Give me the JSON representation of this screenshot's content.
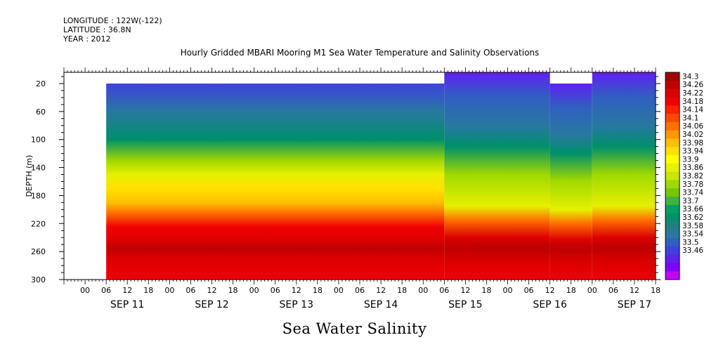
{
  "header": {
    "longitude": "LONGITUDE : 122W(-122)",
    "latitude": "LATITUDE : 36.8N",
    "year": "YEAR : 2012",
    "title": "Hourly Gridded MBARI Mooring M1 Sea Water Temperature and Salinity Observations"
  },
  "caption": "Sea Water Salinity",
  "chart_data": {
    "type": "heatmap",
    "title": "Hourly Gridded MBARI Mooring M1 Sea Water Temperature and Salinity Observations",
    "variable": "Sea Water Salinity",
    "ylabel": "DEPTH (m)",
    "y_ticks": [
      20,
      60,
      100,
      140,
      180,
      220,
      260,
      300
    ],
    "ylim": [
      4,
      300
    ],
    "y_inverted": true,
    "x_hour_ticks": [
      "00",
      "06",
      "12",
      "18",
      "00",
      "06",
      "12",
      "18",
      "00",
      "06",
      "12",
      "18",
      "00",
      "06",
      "12",
      "18",
      "00",
      "06",
      "12",
      "18",
      "00",
      "06",
      "12",
      "18",
      "00",
      "06",
      "12",
      "18"
    ],
    "x_day_labels": [
      "SEP 11",
      "SEP 12",
      "SEP 13",
      "SEP 14",
      "SEP 15",
      "SEP 16",
      "SEP 17"
    ],
    "xlim_hours": [
      -6,
      162
    ],
    "data_start_hour": 6,
    "colorbar_labels": [
      "34.3",
      "34.26",
      "34.22",
      "34.18",
      "34.14",
      "34.1",
      "34.06",
      "34.02",
      "33.98",
      "33.94",
      "33.9",
      "33.86",
      "33.82",
      "33.78",
      "33.74",
      "33.7",
      "33.66",
      "33.62",
      "33.58",
      "33.54",
      "33.5",
      "33.46"
    ],
    "colorbar_colors": [
      "#a00000",
      "#c00000",
      "#dc0000",
      "#f00000",
      "#ff2000",
      "#ff4800",
      "#ff7000",
      "#ff9800",
      "#ffc000",
      "#ffe000",
      "#ffff00",
      "#e6f000",
      "#c8e600",
      "#a0d800",
      "#78c800",
      "#40b440",
      "#00a060",
      "#00906a",
      "#208080",
      "#2878a0",
      "#3060c0",
      "#4040e0",
      "#6020f0",
      "#8000ff",
      "#c000ff"
    ],
    "profile_before": [
      {
        "depth": 20,
        "value": 33.58
      },
      {
        "depth": 60,
        "value": 33.64
      },
      {
        "depth": 100,
        "value": 33.7
      },
      {
        "depth": 130,
        "value": 33.84
      },
      {
        "depth": 150,
        "value": 33.92
      },
      {
        "depth": 170,
        "value": 33.98
      },
      {
        "depth": 190,
        "value": 34.02
      },
      {
        "depth": 205,
        "value": 34.1
      },
      {
        "depth": 225,
        "value": 34.18
      },
      {
        "depth": 245,
        "value": 34.24
      },
      {
        "depth": 255,
        "value": 34.28
      },
      {
        "depth": 270,
        "value": 34.24
      },
      {
        "depth": 300,
        "value": 34.2
      }
    ],
    "profile_after": [
      {
        "depth": 4,
        "value": 33.52
      },
      {
        "depth": 40,
        "value": 33.6
      },
      {
        "depth": 80,
        "value": 33.64
      },
      {
        "depth": 110,
        "value": 33.72
      },
      {
        "depth": 150,
        "value": 33.84
      },
      {
        "depth": 195,
        "value": 33.9
      },
      {
        "depth": 215,
        "value": 34.1
      },
      {
        "depth": 240,
        "value": 34.22
      },
      {
        "depth": 255,
        "value": 34.28
      },
      {
        "depth": 275,
        "value": 34.22
      },
      {
        "depth": 300,
        "value": 34.18
      }
    ],
    "shallow_segments": [
      {
        "start_hour": 102,
        "end_hour": 132,
        "top_depth": 4
      },
      {
        "start_hour": 132,
        "end_hour": 144,
        "top_depth": 20
      },
      {
        "start_hour": 144,
        "end_hour": 162,
        "top_depth": 4
      }
    ]
  }
}
